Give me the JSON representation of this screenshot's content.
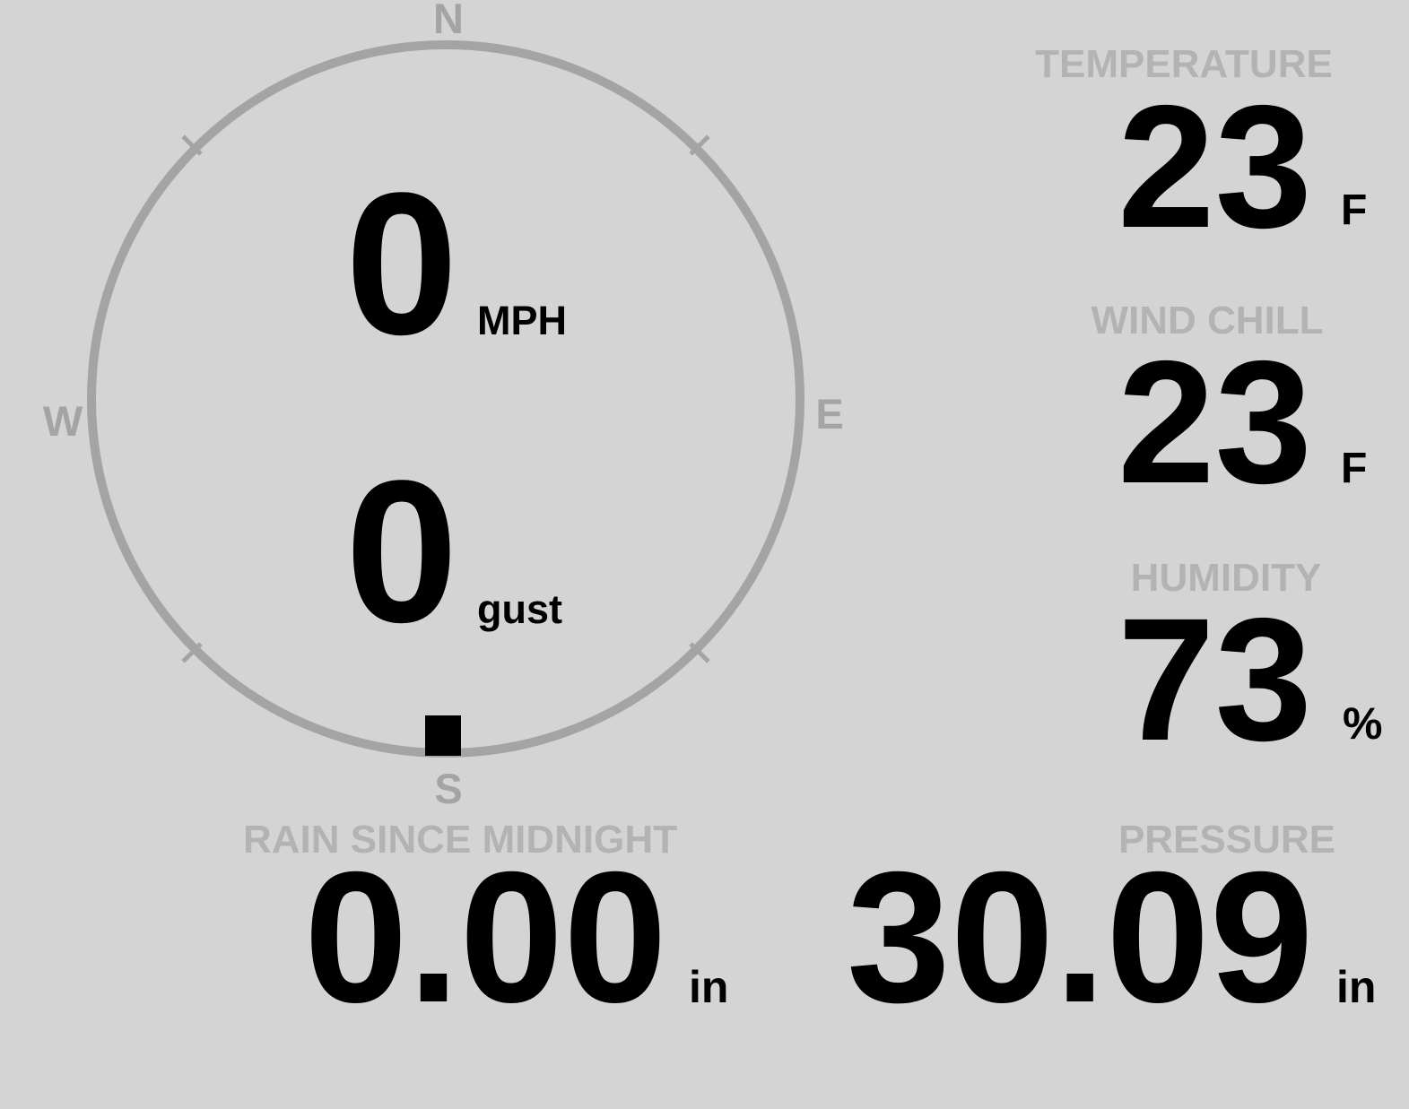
{
  "colors": {
    "background": "#d4d4d4",
    "gauge": "#a4a4a4",
    "label": "#b3b3b3",
    "value": "#000000"
  },
  "wind": {
    "cardinals": {
      "north": "N",
      "east": "E",
      "south": "S",
      "west": "W"
    },
    "speed": {
      "value": "0",
      "unit": "MPH"
    },
    "gust": {
      "value": "0",
      "unit": "gust"
    },
    "direction": "S"
  },
  "stats": {
    "temperature": {
      "label": "TEMPERATURE",
      "value": "23",
      "unit": "F"
    },
    "wind_chill": {
      "label": "WIND CHILL",
      "value": "23",
      "unit": "F"
    },
    "humidity": {
      "label": "HUMIDITY",
      "value": "73",
      "unit": "%"
    },
    "rain_since_midnight": {
      "label": "RAIN SINCE MIDNIGHT",
      "value": "0.00",
      "unit": "in"
    },
    "pressure": {
      "label": "PRESSURE",
      "value": "30.09",
      "unit": "in"
    }
  }
}
